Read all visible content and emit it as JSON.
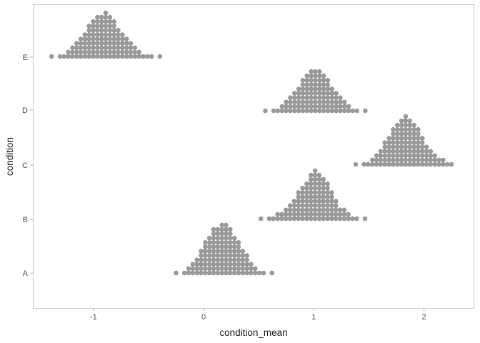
{
  "chart_data": {
    "type": "scatter",
    "subtype": "dotplot",
    "title": "",
    "xlabel": "condition_mean",
    "ylabel": "condition",
    "xlim": [
      -1.55,
      2.45
    ],
    "x_ticks": [
      -1,
      0,
      1,
      2
    ],
    "x_tick_labels": [
      "-1",
      "0",
      "1",
      "2"
    ],
    "categories": [
      "A",
      "B",
      "C",
      "D",
      "E"
    ],
    "grid": false,
    "dot_color": "#999999",
    "binwidth": 0.0378,
    "series": [
      {
        "category": "A",
        "x_start": -0.25,
        "counts": [
          1,
          0,
          1,
          2,
          3,
          4,
          6,
          8,
          9,
          11,
          11,
          12,
          12,
          11,
          9,
          8,
          6,
          5,
          3,
          2,
          1,
          1,
          0,
          1
        ]
      },
      {
        "category": "B",
        "x_start": 0.52,
        "counts": [
          1,
          0,
          1,
          1,
          2,
          2,
          3,
          4,
          5,
          7,
          8,
          9,
          11,
          12,
          11,
          10,
          9,
          7,
          5,
          3,
          3,
          2,
          1,
          1,
          0,
          1
        ]
      },
      {
        "category": "C",
        "x_start": 1.38,
        "counts": [
          1,
          0,
          1,
          1,
          2,
          3,
          4,
          6,
          7,
          9,
          10,
          11,
          12,
          11,
          10,
          9,
          7,
          5,
          4,
          3,
          2,
          2,
          1,
          1
        ]
      },
      {
        "category": "D",
        "x_start": 0.56,
        "counts": [
          1,
          0,
          1,
          1,
          2,
          3,
          4,
          5,
          6,
          8,
          9,
          10,
          10,
          10,
          9,
          8,
          6,
          5,
          4,
          3,
          2,
          1,
          1,
          0,
          1
        ]
      },
      {
        "category": "E",
        "x_start": -1.38,
        "counts": [
          1,
          0,
          1,
          1,
          2,
          3,
          4,
          5,
          6,
          8,
          9,
          10,
          10,
          11,
          10,
          9,
          7,
          6,
          5,
          4,
          3,
          2,
          1,
          1,
          1,
          0,
          1
        ]
      }
    ]
  }
}
